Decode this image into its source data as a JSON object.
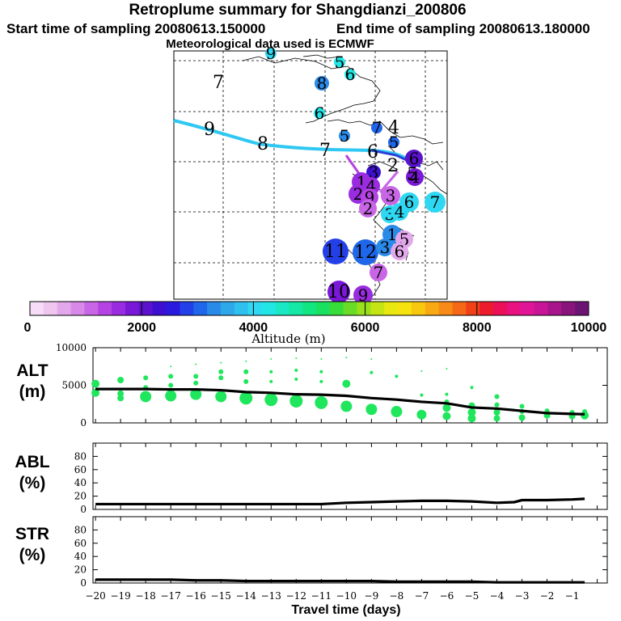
{
  "header": {
    "title": "Retroplume summary for Shangdianzi_200806",
    "start_time": "Start time of sampling 20080613.150000",
    "end_time": "End time of sampling 20080613.180000",
    "met_data": "Meteorological data used is ECMWF"
  },
  "colorbar": {
    "label": "Altitude (m)",
    "tick_labels": [
      "0",
      "2000",
      "4000",
      "6000",
      "8000",
      "10000"
    ],
    "range": [
      0,
      10000
    ],
    "colors": [
      "#f6dcf6",
      "#efc6ef",
      "#e3a8ec",
      "#d889e8",
      "#c866e6",
      "#b543e3",
      "#9a2ce0",
      "#7a18d8",
      "#5b12cc",
      "#3d0fd0",
      "#2a1ae0",
      "#2340e8",
      "#1f66ea",
      "#2a8ae8",
      "#2fa8ea",
      "#30c0ee",
      "#2fd8f2",
      "#22e6e6",
      "#1ae8c4",
      "#14e8a4",
      "#12e680",
      "#1ae060",
      "#38dc3a",
      "#6adc28",
      "#9ae01c",
      "#c4e414",
      "#e8e810",
      "#f6e20c",
      "#f8c810",
      "#f8aa14",
      "#f88a18",
      "#f46818",
      "#f04018",
      "#ec1c2c",
      "#ec1058",
      "#e81280",
      "#e01496",
      "#c81496",
      "#a8148a",
      "#88147c",
      "#6c1474"
    ]
  },
  "map": {
    "numbers": [
      {
        "label": "9",
        "x": 335,
        "y": 66,
        "size": 7,
        "color": "#2fd8f2"
      },
      {
        "label": "5",
        "x": 420,
        "y": 77,
        "size": 7,
        "color": "#22e6e6"
      },
      {
        "label": "6",
        "x": 433,
        "y": 92,
        "size": 7,
        "color": "#22e6e6"
      },
      {
        "label": "7",
        "x": 270,
        "y": 102,
        "size": 0,
        "color": "#000000"
      },
      {
        "label": "8",
        "x": 398,
        "y": 103,
        "size": 9,
        "color": "#2a8ae8"
      },
      {
        "label": "6",
        "x": 395,
        "y": 140,
        "size": 7,
        "color": "#22e6e6"
      },
      {
        "label": "7",
        "x": 466,
        "y": 158,
        "size": 7,
        "color": "#1f66ea"
      },
      {
        "label": "4",
        "x": 487,
        "y": 158,
        "size": 0,
        "color": "#000000"
      },
      {
        "label": "5",
        "x": 426,
        "y": 168,
        "size": 7,
        "color": "#2a8ae8"
      },
      {
        "label": "5",
        "x": 487,
        "y": 176,
        "size": 7,
        "color": "#1f66ea"
      },
      {
        "label": "6",
        "x": 512,
        "y": 196,
        "size": 11,
        "color": "#5b12cc"
      },
      {
        "label": "2",
        "x": 486,
        "y": 205,
        "size": 0,
        "color": "#000000"
      },
      {
        "label": "3",
        "x": 462,
        "y": 213,
        "size": 9,
        "color": "#3d0fd0"
      },
      {
        "label": "4",
        "x": 513,
        "y": 219,
        "size": 11,
        "color": "#7a18d8"
      },
      {
        "label": "1",
        "x": 447,
        "y": 225,
        "size": 12,
        "color": "#9a2ce0"
      },
      {
        "label": "4",
        "x": 459,
        "y": 230,
        "size": 11,
        "color": "#9a2ce0"
      },
      {
        "label": "2",
        "x": 443,
        "y": 240,
        "size": 12,
        "color": "#9a2ce0"
      },
      {
        "label": "9",
        "x": 457,
        "y": 244,
        "size": 11,
        "color": "#b543e3"
      },
      {
        "label": "3",
        "x": 483,
        "y": 242,
        "size": 12,
        "color": "#c866e6"
      },
      {
        "label": "6",
        "x": 506,
        "y": 250,
        "size": 12,
        "color": "#2fd8f2"
      },
      {
        "label": "7",
        "x": 538,
        "y": 250,
        "size": 13,
        "color": "#2fd8f2"
      },
      {
        "label": "2",
        "x": 455,
        "y": 258,
        "size": 11,
        "color": "#c866e6"
      },
      {
        "label": "3",
        "x": 482,
        "y": 265,
        "size": 11,
        "color": "#2fd8f2"
      },
      {
        "label": "4",
        "x": 494,
        "y": 262,
        "size": 11,
        "color": "#2fd8f2"
      },
      {
        "label": "1",
        "x": 485,
        "y": 290,
        "size": 12,
        "color": "#2a8ae8"
      },
      {
        "label": "5",
        "x": 500,
        "y": 296,
        "size": 11,
        "color": "#e3a8ec"
      },
      {
        "label": "11",
        "x": 415,
        "y": 311,
        "size": 16,
        "color": "#2340e8"
      },
      {
        "label": "12",
        "x": 452,
        "y": 312,
        "size": 16,
        "color": "#1f66ea"
      },
      {
        "label": "3",
        "x": 476,
        "y": 306,
        "size": 11,
        "color": "#2a8ae8"
      },
      {
        "label": "6",
        "x": 494,
        "y": 311,
        "size": 11,
        "color": "#e3a8ec"
      },
      {
        "label": "7",
        "x": 468,
        "y": 337,
        "size": 11,
        "color": "#c866e6"
      },
      {
        "label": "10",
        "x": 419,
        "y": 361,
        "size": 14,
        "color": "#7a18d8"
      },
      {
        "label": "9",
        "x": 449,
        "y": 365,
        "size": 12,
        "color": "#9a2ce0"
      },
      {
        "label": "9",
        "x": 259,
        "y": 160,
        "size": 0,
        "color": "#000000"
      },
      {
        "label": "8",
        "x": 325,
        "y": 178,
        "size": 0,
        "color": "#000000"
      },
      {
        "label": "7",
        "x": 402,
        "y": 186,
        "size": 0,
        "color": "#000000"
      },
      {
        "label": "6",
        "x": 461,
        "y": 188,
        "size": 0,
        "color": "#000000"
      },
      {
        "label": "5",
        "x": 510,
        "y": 216,
        "size": 0,
        "color": "#000000"
      }
    ]
  },
  "chart_data": [
    {
      "type": "scatter",
      "name": "ALT",
      "ylabel": "ALT\n(m)",
      "ylabel_lines": [
        "ALT",
        "(m)"
      ],
      "ylim": [
        0,
        10000
      ],
      "y_ticks": [
        "0",
        "5000",
        "10000"
      ],
      "x": [
        -20,
        -19,
        -18,
        -17,
        -16,
        -15,
        -14,
        -13,
        -12,
        -11,
        -10,
        -9,
        -8,
        -7,
        -6,
        -5,
        -4,
        -3,
        -2,
        -1,
        -0.5
      ],
      "mean_line": [
        4500,
        4500,
        4500,
        4450,
        4450,
        4350,
        4100,
        4000,
        3800,
        3750,
        3600,
        3300,
        3100,
        2800,
        2600,
        2050,
        1900,
        1600,
        1300,
        1200,
        1150
      ],
      "points": [
        {
          "x": -20,
          "y": 5200,
          "s": 5
        },
        {
          "x": -20,
          "y": 4000,
          "s": 5
        },
        {
          "x": -19,
          "y": 5700,
          "s": 4
        },
        {
          "x": -19,
          "y": 3900,
          "s": 4
        },
        {
          "x": -19,
          "y": 3300,
          "s": 4
        },
        {
          "x": -18,
          "y": 6000,
          "s": 3
        },
        {
          "x": -18,
          "y": 4700,
          "s": 3
        },
        {
          "x": -18,
          "y": 3500,
          "s": 7
        },
        {
          "x": -17,
          "y": 7500,
          "s": 1
        },
        {
          "x": -17,
          "y": 6200,
          "s": 3
        },
        {
          "x": -17,
          "y": 5000,
          "s": 3
        },
        {
          "x": -17,
          "y": 3600,
          "s": 7
        },
        {
          "x": -16,
          "y": 7800,
          "s": 1
        },
        {
          "x": -16,
          "y": 6200,
          "s": 3
        },
        {
          "x": -16,
          "y": 5300,
          "s": 3
        },
        {
          "x": -16,
          "y": 3800,
          "s": 7
        },
        {
          "x": -15,
          "y": 8000,
          "s": 1
        },
        {
          "x": -15,
          "y": 6800,
          "s": 3
        },
        {
          "x": -15,
          "y": 6000,
          "s": 3
        },
        {
          "x": -15,
          "y": 3500,
          "s": 7
        },
        {
          "x": -14,
          "y": 8200,
          "s": 1
        },
        {
          "x": -14,
          "y": 6800,
          "s": 3
        },
        {
          "x": -14,
          "y": 5500,
          "s": 3
        },
        {
          "x": -14,
          "y": 3300,
          "s": 8
        },
        {
          "x": -13,
          "y": 8500,
          "s": 1
        },
        {
          "x": -13,
          "y": 6800,
          "s": 2
        },
        {
          "x": -13,
          "y": 5500,
          "s": 2
        },
        {
          "x": -13,
          "y": 3100,
          "s": 8
        },
        {
          "x": -12,
          "y": 8600,
          "s": 1
        },
        {
          "x": -12,
          "y": 7000,
          "s": 2
        },
        {
          "x": -12,
          "y": 5800,
          "s": 2
        },
        {
          "x": -12,
          "y": 2900,
          "s": 8
        },
        {
          "x": -11,
          "y": 8500,
          "s": 1
        },
        {
          "x": -11,
          "y": 6800,
          "s": 2
        },
        {
          "x": -11,
          "y": 5500,
          "s": 2
        },
        {
          "x": -11,
          "y": 2700,
          "s": 8
        },
        {
          "x": -10,
          "y": 8700,
          "s": 1
        },
        {
          "x": -10,
          "y": 5200,
          "s": 5
        },
        {
          "x": -10,
          "y": 2200,
          "s": 7
        },
        {
          "x": -9,
          "y": 8500,
          "s": 1
        },
        {
          "x": -9,
          "y": 6700,
          "s": 2
        },
        {
          "x": -9,
          "y": 1800,
          "s": 7
        },
        {
          "x": -8,
          "y": 6200,
          "s": 2
        },
        {
          "x": -8,
          "y": 1500,
          "s": 7
        },
        {
          "x": -7,
          "y": 6900,
          "s": 1
        },
        {
          "x": -7,
          "y": 3700,
          "s": 2
        },
        {
          "x": -7,
          "y": 1100,
          "s": 6
        },
        {
          "x": -6,
          "y": 7200,
          "s": 1
        },
        {
          "x": -6,
          "y": 3800,
          "s": 2
        },
        {
          "x": -6,
          "y": 2800,
          "s": 3
        },
        {
          "x": -6,
          "y": 2000,
          "s": 5
        },
        {
          "x": -6,
          "y": 900,
          "s": 5
        },
        {
          "x": -5,
          "y": 4700,
          "s": 2
        },
        {
          "x": -5,
          "y": 2300,
          "s": 4
        },
        {
          "x": -5,
          "y": 1400,
          "s": 5
        },
        {
          "x": -5,
          "y": 600,
          "s": 5
        },
        {
          "x": -4,
          "y": 3500,
          "s": 3
        },
        {
          "x": -4,
          "y": 2400,
          "s": 3
        },
        {
          "x": -4,
          "y": 1400,
          "s": 4
        },
        {
          "x": -4,
          "y": 600,
          "s": 4
        },
        {
          "x": -3,
          "y": 2200,
          "s": 3
        },
        {
          "x": -3,
          "y": 1500,
          "s": 3
        },
        {
          "x": -3,
          "y": 700,
          "s": 4
        },
        {
          "x": -2,
          "y": 1600,
          "s": 3
        },
        {
          "x": -2,
          "y": 1000,
          "s": 4
        },
        {
          "x": -1,
          "y": 1400,
          "s": 3
        },
        {
          "x": -1,
          "y": 900,
          "s": 4
        },
        {
          "x": -0.5,
          "y": 1500,
          "s": 3
        },
        {
          "x": -0.5,
          "y": 1000,
          "s": 5
        }
      ]
    },
    {
      "type": "line",
      "name": "ABL",
      "ylabel_lines": [
        "ABL",
        "(%)"
      ],
      "ylim": [
        0,
        100
      ],
      "y_ticks": [
        "0",
        "20",
        "40",
        "60",
        "80"
      ],
      "x": [
        -20,
        -19,
        -18,
        -17,
        -16,
        -15,
        -14,
        -13,
        -12,
        -11,
        -10,
        -9,
        -8,
        -7,
        -6,
        -5,
        -4,
        -3.3,
        -3,
        -2,
        -1,
        -0.5
      ],
      "values": [
        8,
        8,
        8,
        8,
        8,
        8,
        8,
        8,
        8,
        8,
        10,
        11,
        12,
        13,
        13,
        12,
        10,
        11,
        14,
        14,
        15,
        16
      ]
    },
    {
      "type": "line",
      "name": "STR",
      "ylabel_lines": [
        "STR",
        "(%)"
      ],
      "ylim": [
        0,
        100
      ],
      "y_ticks": [
        "0",
        "20",
        "40",
        "60",
        "80"
      ],
      "x": [
        -20,
        -19,
        -18,
        -17,
        -16,
        -15,
        -14,
        -13,
        -12,
        -11,
        -10,
        -9,
        -8,
        -7,
        -6,
        -5,
        -4,
        -3,
        -2,
        -1,
        -0.5
      ],
      "values": [
        5,
        5,
        5,
        5,
        4,
        4,
        3,
        3,
        3,
        3,
        3,
        3,
        2,
        2,
        2,
        2,
        1,
        1,
        1,
        1,
        1
      ],
      "xlabel": "Travel time (days)",
      "x_tick_labels": [
        "−20",
        "−19",
        "−18",
        "−17",
        "−16",
        "−15",
        "−14",
        "−13",
        "−12",
        "−11",
        "−10",
        "−9",
        "−8",
        "−7",
        "−6",
        "−5",
        "−4",
        "−3",
        "−2",
        "−1"
      ]
    }
  ]
}
